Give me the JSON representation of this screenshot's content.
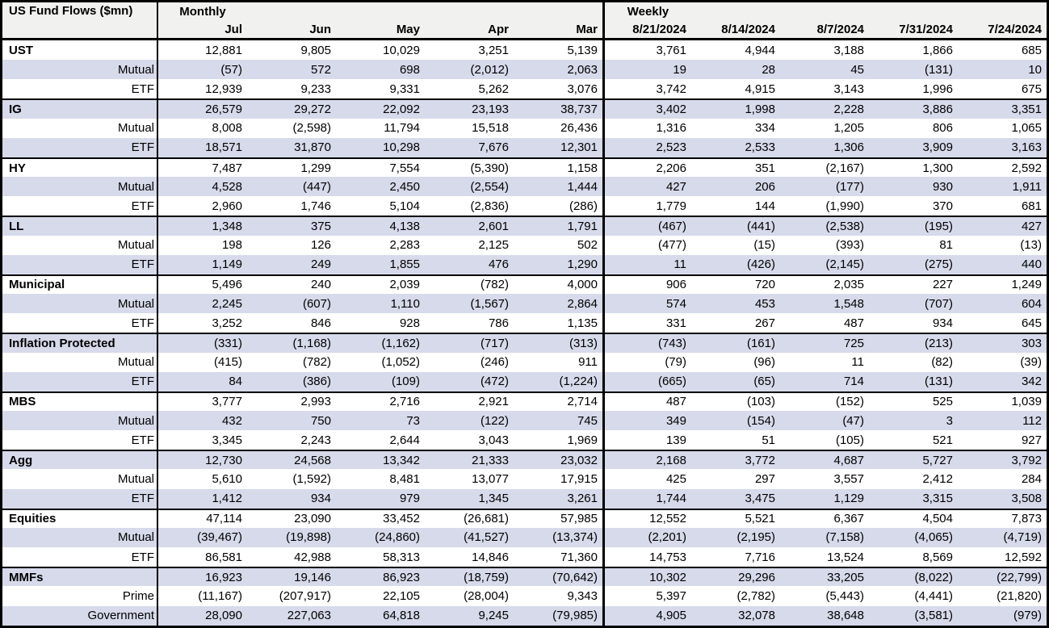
{
  "table": {
    "title": "US Fund Flows ($mn)",
    "sections": {
      "monthly": {
        "label": "Monthly",
        "columns": [
          "Jul",
          "Jun",
          "May",
          "Apr",
          "Mar"
        ]
      },
      "weekly": {
        "label": "Weekly",
        "columns": [
          "8/21/2024",
          "8/14/2024",
          "8/7/2024",
          "7/31/2024",
          "7/24/2024"
        ]
      }
    },
    "groups": [
      {
        "name": "UST",
        "rows": [
          {
            "label": "UST",
            "monthly": [
              "12,881",
              "9,805",
              "10,029",
              "3,251",
              "5,139"
            ],
            "weekly": [
              "3,761",
              "4,944",
              "3,188",
              "1,866",
              "685"
            ]
          },
          {
            "label": "Mutual",
            "monthly": [
              "(57)",
              "572",
              "698",
              "(2,012)",
              "2,063"
            ],
            "weekly": [
              "19",
              "28",
              "45",
              "(131)",
              "10"
            ]
          },
          {
            "label": "ETF",
            "monthly": [
              "12,939",
              "9,233",
              "9,331",
              "5,262",
              "3,076"
            ],
            "weekly": [
              "3,742",
              "4,915",
              "3,143",
              "1,996",
              "675"
            ]
          }
        ]
      },
      {
        "name": "IG",
        "rows": [
          {
            "label": "IG",
            "monthly": [
              "26,579",
              "29,272",
              "22,092",
              "23,193",
              "38,737"
            ],
            "weekly": [
              "3,402",
              "1,998",
              "2,228",
              "3,886",
              "3,351"
            ]
          },
          {
            "label": "Mutual",
            "monthly": [
              "8,008",
              "(2,598)",
              "11,794",
              "15,518",
              "26,436"
            ],
            "weekly": [
              "1,316",
              "334",
              "1,205",
              "806",
              "1,065"
            ]
          },
          {
            "label": "ETF",
            "monthly": [
              "18,571",
              "31,870",
              "10,298",
              "7,676",
              "12,301"
            ],
            "weekly": [
              "2,523",
              "2,533",
              "1,306",
              "3,909",
              "3,163"
            ]
          }
        ]
      },
      {
        "name": "HY",
        "rows": [
          {
            "label": "HY",
            "monthly": [
              "7,487",
              "1,299",
              "7,554",
              "(5,390)",
              "1,158"
            ],
            "weekly": [
              "2,206",
              "351",
              "(2,167)",
              "1,300",
              "2,592"
            ]
          },
          {
            "label": "Mutual",
            "monthly": [
              "4,528",
              "(447)",
              "2,450",
              "(2,554)",
              "1,444"
            ],
            "weekly": [
              "427",
              "206",
              "(177)",
              "930",
              "1,911"
            ]
          },
          {
            "label": "ETF",
            "monthly": [
              "2,960",
              "1,746",
              "5,104",
              "(2,836)",
              "(286)"
            ],
            "weekly": [
              "1,779",
              "144",
              "(1,990)",
              "370",
              "681"
            ]
          }
        ]
      },
      {
        "name": "LL",
        "rows": [
          {
            "label": "LL",
            "monthly": [
              "1,348",
              "375",
              "4,138",
              "2,601",
              "1,791"
            ],
            "weekly": [
              "(467)",
              "(441)",
              "(2,538)",
              "(195)",
              "427"
            ]
          },
          {
            "label": "Mutual",
            "monthly": [
              "198",
              "126",
              "2,283",
              "2,125",
              "502"
            ],
            "weekly": [
              "(477)",
              "(15)",
              "(393)",
              "81",
              "(13)"
            ]
          },
          {
            "label": "ETF",
            "monthly": [
              "1,149",
              "249",
              "1,855",
              "476",
              "1,290"
            ],
            "weekly": [
              "11",
              "(426)",
              "(2,145)",
              "(275)",
              "440"
            ]
          }
        ]
      },
      {
        "name": "Municipal",
        "rows": [
          {
            "label": "Municipal",
            "monthly": [
              "5,496",
              "240",
              "2,039",
              "(782)",
              "4,000"
            ],
            "weekly": [
              "906",
              "720",
              "2,035",
              "227",
              "1,249"
            ]
          },
          {
            "label": "Mutual",
            "monthly": [
              "2,245",
              "(607)",
              "1,110",
              "(1,567)",
              "2,864"
            ],
            "weekly": [
              "574",
              "453",
              "1,548",
              "(707)",
              "604"
            ]
          },
          {
            "label": "ETF",
            "monthly": [
              "3,252",
              "846",
              "928",
              "786",
              "1,135"
            ],
            "weekly": [
              "331",
              "267",
              "487",
              "934",
              "645"
            ]
          }
        ]
      },
      {
        "name": "Inflation Protected",
        "rows": [
          {
            "label": "Inflation Protected",
            "monthly": [
              "(331)",
              "(1,168)",
              "(1,162)",
              "(717)",
              "(313)"
            ],
            "weekly": [
              "(743)",
              "(161)",
              "725",
              "(213)",
              "303"
            ]
          },
          {
            "label": "Mutual",
            "monthly": [
              "(415)",
              "(782)",
              "(1,052)",
              "(246)",
              "911"
            ],
            "weekly": [
              "(79)",
              "(96)",
              "11",
              "(82)",
              "(39)"
            ]
          },
          {
            "label": "ETF",
            "monthly": [
              "84",
              "(386)",
              "(109)",
              "(472)",
              "(1,224)"
            ],
            "weekly": [
              "(665)",
              "(65)",
              "714",
              "(131)",
              "342"
            ]
          }
        ]
      },
      {
        "name": "MBS",
        "rows": [
          {
            "label": "MBS",
            "monthly": [
              "3,777",
              "2,993",
              "2,716",
              "2,921",
              "2,714"
            ],
            "weekly": [
              "487",
              "(103)",
              "(152)",
              "525",
              "1,039"
            ]
          },
          {
            "label": "Mutual",
            "monthly": [
              "432",
              "750",
              "73",
              "(122)",
              "745"
            ],
            "weekly": [
              "349",
              "(154)",
              "(47)",
              "3",
              "112"
            ]
          },
          {
            "label": "ETF",
            "monthly": [
              "3,345",
              "2,243",
              "2,644",
              "3,043",
              "1,969"
            ],
            "weekly": [
              "139",
              "51",
              "(105)",
              "521",
              "927"
            ]
          }
        ]
      },
      {
        "name": "Agg",
        "rows": [
          {
            "label": "Agg",
            "monthly": [
              "12,730",
              "24,568",
              "13,342",
              "21,333",
              "23,032"
            ],
            "weekly": [
              "2,168",
              "3,772",
              "4,687",
              "5,727",
              "3,792"
            ]
          },
          {
            "label": "Mutual",
            "monthly": [
              "5,610",
              "(1,592)",
              "8,481",
              "13,077",
              "17,915"
            ],
            "weekly": [
              "425",
              "297",
              "3,557",
              "2,412",
              "284"
            ]
          },
          {
            "label": "ETF",
            "monthly": [
              "1,412",
              "934",
              "979",
              "1,345",
              "3,261"
            ],
            "weekly": [
              "1,744",
              "3,475",
              "1,129",
              "3,315",
              "3,508"
            ]
          }
        ]
      },
      {
        "name": "Equities",
        "rows": [
          {
            "label": "Equities",
            "monthly": [
              "47,114",
              "23,090",
              "33,452",
              "(26,681)",
              "57,985"
            ],
            "weekly": [
              "12,552",
              "5,521",
              "6,367",
              "4,504",
              "7,873"
            ]
          },
          {
            "label": "Mutual",
            "monthly": [
              "(39,467)",
              "(19,898)",
              "(24,860)",
              "(41,527)",
              "(13,374)"
            ],
            "weekly": [
              "(2,201)",
              "(2,195)",
              "(7,158)",
              "(4,065)",
              "(4,719)"
            ]
          },
          {
            "label": "ETF",
            "monthly": [
              "86,581",
              "42,988",
              "58,313",
              "14,846",
              "71,360"
            ],
            "weekly": [
              "14,753",
              "7,716",
              "13,524",
              "8,569",
              "12,592"
            ]
          }
        ]
      },
      {
        "name": "MMFs",
        "rows": [
          {
            "label": "MMFs",
            "monthly": [
              "16,923",
              "19,146",
              "86,923",
              "(18,759)",
              "(70,642)"
            ],
            "weekly": [
              "10,302",
              "29,296",
              "33,205",
              "(8,022)",
              "(22,799)"
            ]
          },
          {
            "label": "Prime",
            "monthly": [
              "(11,167)",
              "(207,917)",
              "22,105",
              "(28,004)",
              "9,343"
            ],
            "weekly": [
              "5,397",
              "(2,782)",
              "(5,443)",
              "(4,441)",
              "(21,820)"
            ]
          },
          {
            "label": "Government",
            "monthly": [
              "28,090",
              "227,063",
              "64,818",
              "9,245",
              "(79,985)"
            ],
            "weekly": [
              "4,905",
              "32,078",
              "38,648",
              "(3,581)",
              "(979)"
            ]
          }
        ]
      }
    ]
  },
  "colors": {
    "stripe": "#d6daea",
    "header_bg": "#f1f1ef",
    "border": "#000000",
    "text": "#000000"
  }
}
